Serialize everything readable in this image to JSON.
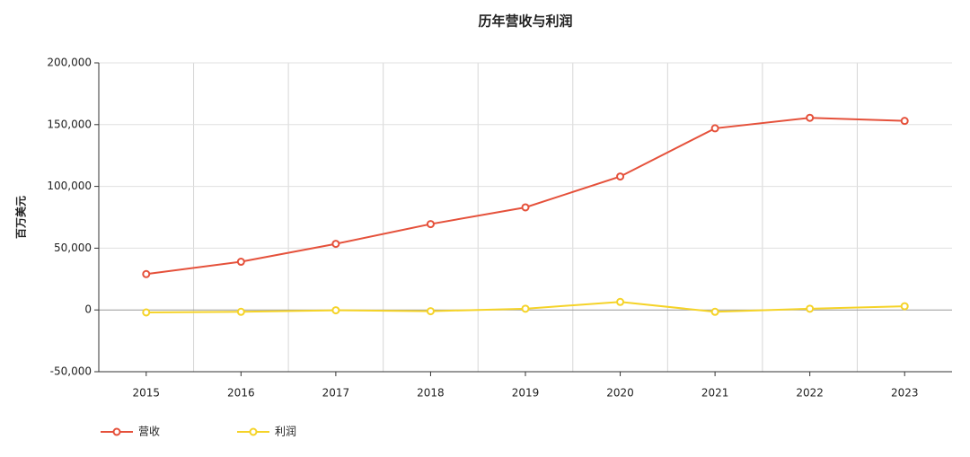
{
  "chart_data": {
    "type": "line",
    "title": "历年营收与利润",
    "y_label": "百万美元",
    "categories": [
      "2015",
      "2016",
      "2017",
      "2018",
      "2019",
      "2020",
      "2021",
      "2022",
      "2023"
    ],
    "series": [
      {
        "name": "营收",
        "color": "#e5513b",
        "values": [
          29000,
          39000,
          53500,
          69500,
          83000,
          108000,
          147000,
          155500,
          153000
        ]
      },
      {
        "name": "利润",
        "color": "#f5d328",
        "values": [
          -2000,
          -1500,
          -300,
          -1000,
          1000,
          6500,
          -1500,
          1000,
          3000
        ]
      }
    ],
    "ylim": [
      -50000,
      200000
    ],
    "yticks": [
      {
        "value": -50000,
        "label": "-50,000"
      },
      0,
      {
        "value": 50000,
        "label": "50,000"
      },
      {
        "value": 100000,
        "label": "100,000"
      },
      {
        "value": 150000,
        "label": "150,000"
      },
      {
        "value": 200000,
        "label": "200,000"
      }
    ],
    "grid": true,
    "legend": "bottom-left"
  }
}
